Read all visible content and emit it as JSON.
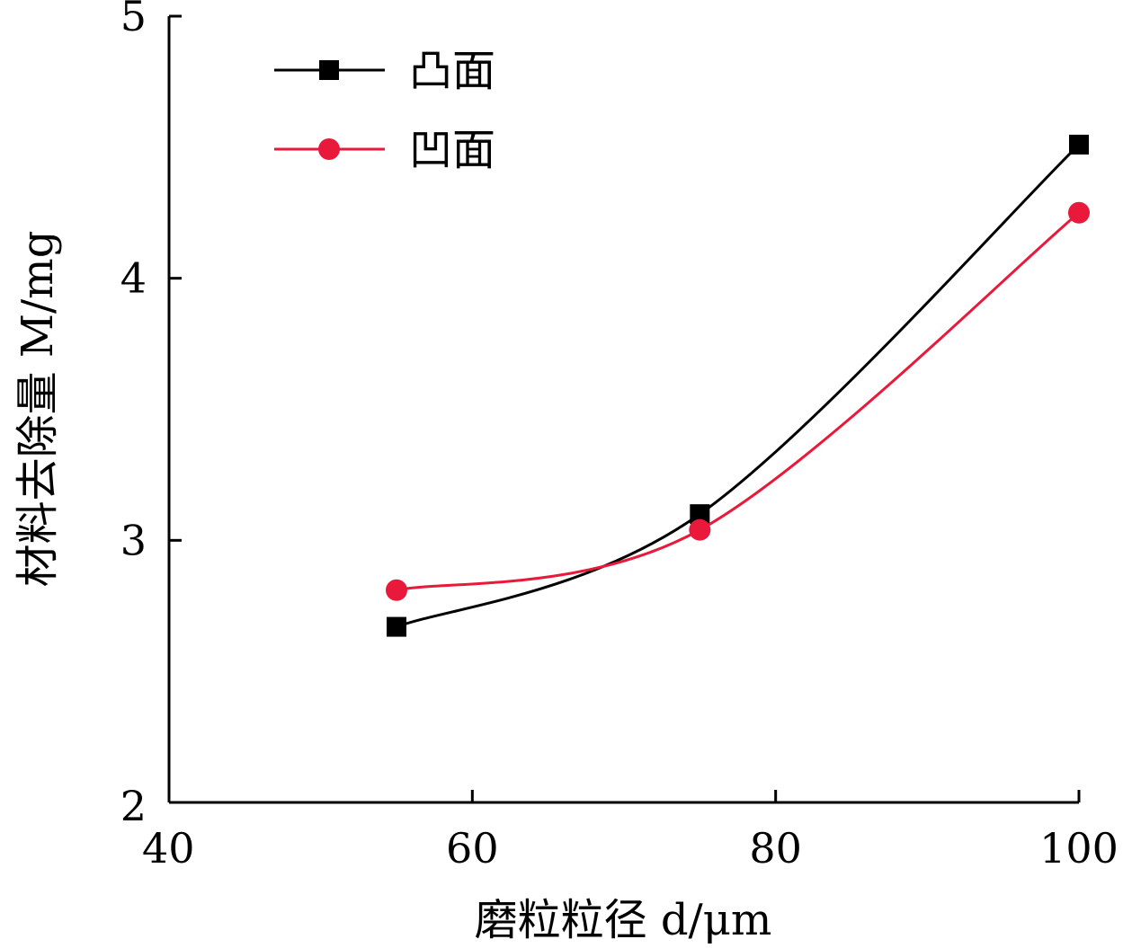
{
  "chart_data": {
    "type": "line",
    "title": "",
    "xlabel": "磨粒粒径 d/μm",
    "ylabel": "材料去除量 M/mg",
    "xlim": [
      40,
      100
    ],
    "ylim": [
      2,
      5
    ],
    "x_ticks": [
      "40",
      "60",
      "80",
      "100"
    ],
    "y_ticks": [
      "2",
      "3",
      "4",
      "5"
    ],
    "x": [
      55,
      75,
      100
    ],
    "series": [
      {
        "name": "凸面",
        "values": [
          2.67,
          3.1,
          4.51
        ],
        "color": "#000000",
        "marker": "square"
      },
      {
        "name": "凹面",
        "values": [
          2.81,
          3.04,
          4.25
        ],
        "color": "#e8193a",
        "marker": "circle"
      }
    ],
    "smooth": true,
    "grid": false,
    "legend_position": "top-left"
  }
}
